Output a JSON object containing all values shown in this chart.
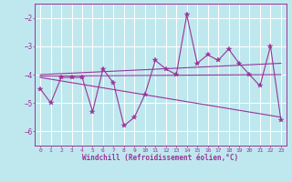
{
  "xlabel": "Windchill (Refroidissement éolien,°C)",
  "bg_color": "#bfe8ee",
  "grid_color": "#ffffff",
  "line_color": "#993399",
  "xlim": [
    -0.5,
    23.5
  ],
  "ylim": [
    -6.5,
    -1.5
  ],
  "yticks": [
    -6,
    -5,
    -4,
    -3,
    -2
  ],
  "xticks": [
    0,
    1,
    2,
    3,
    4,
    5,
    6,
    7,
    8,
    9,
    10,
    11,
    12,
    13,
    14,
    15,
    16,
    17,
    18,
    19,
    20,
    21,
    22,
    23
  ],
  "main_series": {
    "x": [
      0,
      1,
      2,
      3,
      4,
      5,
      6,
      7,
      8,
      9,
      10,
      11,
      12,
      13,
      14,
      15,
      16,
      17,
      18,
      19,
      20,
      21,
      22,
      23
    ],
    "y": [
      -4.5,
      -5.0,
      -4.1,
      -4.1,
      -4.1,
      -5.3,
      -3.8,
      -4.3,
      -5.8,
      -5.5,
      -4.7,
      -3.5,
      -3.8,
      -4.0,
      -1.9,
      -3.6,
      -3.3,
      -3.5,
      -3.1,
      -3.6,
      -4.0,
      -4.4,
      -3.0,
      -5.6
    ]
  },
  "trend_lines": [
    {
      "x": [
        0,
        23
      ],
      "y": [
        -4.0,
        -3.6
      ]
    },
    {
      "x": [
        0,
        23
      ],
      "y": [
        -4.1,
        -5.5
      ]
    },
    {
      "x": [
        0,
        23
      ],
      "y": [
        -4.05,
        -4.0
      ]
    }
  ]
}
